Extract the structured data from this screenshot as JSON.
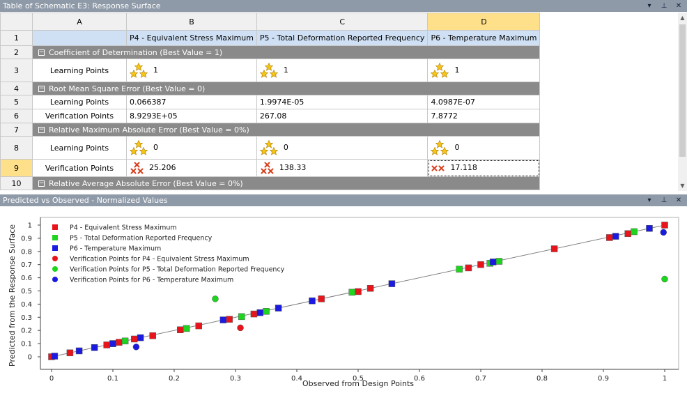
{
  "top_panel": {
    "title": "Table of Schematic E3: Response Surface"
  },
  "bottom_panel": {
    "title": "Predicted vs Observed - Normalized Values"
  },
  "panel_controls": {
    "dropdown": "▾",
    "pin": "⊥",
    "close": "✕"
  },
  "table": {
    "column_letters": [
      "A",
      "B",
      "C",
      "D"
    ],
    "selected_column": "D",
    "row_numbers": [
      "1",
      "2",
      "3",
      "4",
      "5",
      "6",
      "7",
      "8",
      "9",
      "10"
    ],
    "selected_row": "9",
    "header_cells": [
      "",
      "P4 - Equivalent Stress Maximum",
      "P5 - Total Deformation Reported Frequency",
      "P6 - Temperature Maximum"
    ],
    "sections": {
      "cod": "Coefficient of Determination (Best Value = 1)",
      "rmse": "Root Mean Square Error (Best Value = 0)",
      "rmae": "Relative Maximum Absolute Error (Best Value = 0%)",
      "raae": "Relative Average Absolute Error (Best Value = 0%)"
    },
    "rows": {
      "r3": {
        "label": "Learning Points",
        "values": [
          "1",
          "1",
          "1"
        ],
        "icon": "gold-stars"
      },
      "r5": {
        "label": "Learning Points",
        "values": [
          "0.066387",
          "1.9974E-05",
          "4.0987E-07"
        ]
      },
      "r6": {
        "label": "Verification Points",
        "values": [
          "8.9293E+05",
          "267.08",
          "7.8772"
        ]
      },
      "r8": {
        "label": "Learning Points",
        "values": [
          "0",
          "0",
          "0"
        ],
        "icon": "gold-stars"
      },
      "r9": {
        "label": "Verification Points",
        "values": [
          "25.206",
          "138.33",
          "17.118"
        ],
        "icon": "red-crosses"
      }
    }
  },
  "colors": {
    "p4": "#e8141b",
    "p5": "#1fd41f",
    "p6": "#1a1ae0",
    "fit_line": "#808080",
    "header_bar": "#8f9aa8",
    "section_bar": "#8a8a8a",
    "selection": "#ffe08a"
  },
  "chart_data": {
    "type": "scatter",
    "xlabel": "Observed from Design Points",
    "ylabel": "Predicted from the Response Surface",
    "xlim": [
      0,
      1
    ],
    "ylim": [
      0,
      1
    ],
    "xticks": [
      "0",
      "0.1",
      "0.2",
      "0.3",
      "0.4",
      "0.5",
      "0.6",
      "0.7",
      "0.8",
      "0.9",
      "1"
    ],
    "yticks": [
      "0",
      "0.1",
      "0.2",
      "0.3",
      "0.4",
      "0.5",
      "0.6",
      "0.7",
      "0.8",
      "0.9",
      "1"
    ],
    "grid": false,
    "legend_position": "top-left",
    "reference_line": [
      [
        0,
        0
      ],
      [
        1,
        1
      ]
    ],
    "series": [
      {
        "name": "P4 - Equivalent Stress Maximum",
        "marker": "square",
        "color": "#e8141b",
        "points": [
          [
            0,
            0
          ],
          [
            0.03,
            0.03
          ],
          [
            0.09,
            0.09
          ],
          [
            0.11,
            0.11
          ],
          [
            0.135,
            0.135
          ],
          [
            0.165,
            0.16
          ],
          [
            0.21,
            0.205
          ],
          [
            0.24,
            0.235
          ],
          [
            0.29,
            0.285
          ],
          [
            0.33,
            0.325
          ],
          [
            0.44,
            0.44
          ],
          [
            0.5,
            0.495
          ],
          [
            0.52,
            0.52
          ],
          [
            0.68,
            0.675
          ],
          [
            0.7,
            0.7
          ],
          [
            0.82,
            0.82
          ],
          [
            0.91,
            0.905
          ],
          [
            0.94,
            0.935
          ],
          [
            1,
            1
          ]
        ]
      },
      {
        "name": "P5 - Total Deformation Reported Frequency",
        "marker": "square",
        "color": "#1fd41f",
        "points": [
          [
            0.1,
            0.1
          ],
          [
            0.12,
            0.12
          ],
          [
            0.22,
            0.215
          ],
          [
            0.31,
            0.305
          ],
          [
            0.35,
            0.345
          ],
          [
            0.49,
            0.49
          ],
          [
            0.665,
            0.665
          ],
          [
            0.715,
            0.71
          ],
          [
            0.73,
            0.725
          ],
          [
            0.95,
            0.95
          ]
        ]
      },
      {
        "name": "P6 - Temperature Maximum",
        "marker": "square",
        "color": "#1a1ae0",
        "points": [
          [
            0.005,
            0.005
          ],
          [
            0.045,
            0.045
          ],
          [
            0.07,
            0.07
          ],
          [
            0.1,
            0.1
          ],
          [
            0.145,
            0.145
          ],
          [
            0.28,
            0.28
          ],
          [
            0.34,
            0.335
          ],
          [
            0.37,
            0.37
          ],
          [
            0.425,
            0.425
          ],
          [
            0.555,
            0.555
          ],
          [
            0.72,
            0.72
          ],
          [
            0.92,
            0.915
          ],
          [
            0.975,
            0.975
          ]
        ]
      },
      {
        "name": "Verification Points for P4 - Equivalent Stress Maximum",
        "marker": "circle",
        "color": "#e8141b",
        "points": [
          [
            0.308,
            0.22
          ]
        ]
      },
      {
        "name": "Verification Points for P5 - Total Deformation Reported Frequency",
        "marker": "circle",
        "color": "#1fd41f",
        "points": [
          [
            0.267,
            0.44
          ],
          [
            1,
            0.59
          ]
        ]
      },
      {
        "name": "Verification Points for P6 - Temperature Maximum",
        "marker": "circle",
        "color": "#1a1ae0",
        "points": [
          [
            0.138,
            0.075
          ],
          [
            0.998,
            0.945
          ]
        ]
      }
    ]
  }
}
